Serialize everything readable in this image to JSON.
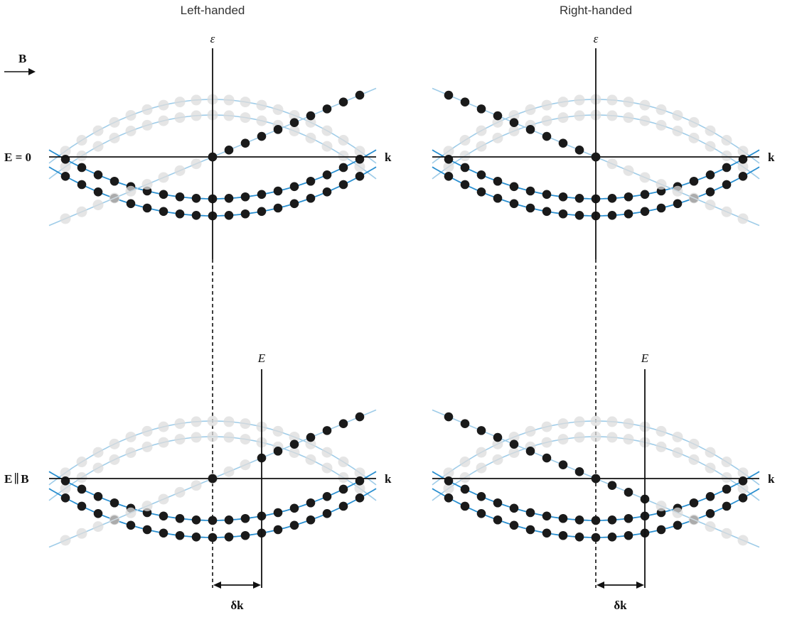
{
  "titles": {
    "left": "Left-handed",
    "right": "Right-handed"
  },
  "labels": {
    "field_arrow": "B",
    "row_top": "E = 0",
    "row_bottom_left": "E",
    "row_bottom_sep": "∥",
    "row_bottom_right": "B",
    "energy_axis": "ε",
    "k_axis": "k",
    "e_marker": "E",
    "delta_k": "δk"
  },
  "colors": {
    "band_line": "#9fcce8",
    "band_line_filled": "#2a8fd0",
    "empty_state": "#dcdcdc",
    "filled_state": "#1a1a1a",
    "axis": "#111111"
  },
  "panels": [
    {
      "name": "top-left",
      "chirality": "left",
      "shifted": false
    },
    {
      "name": "top-right",
      "chirality": "right",
      "shifted": false
    },
    {
      "name": "bottom-left",
      "chirality": "left",
      "shifted": true
    },
    {
      "name": "bottom-right",
      "chirality": "right",
      "shifted": true
    }
  ]
}
